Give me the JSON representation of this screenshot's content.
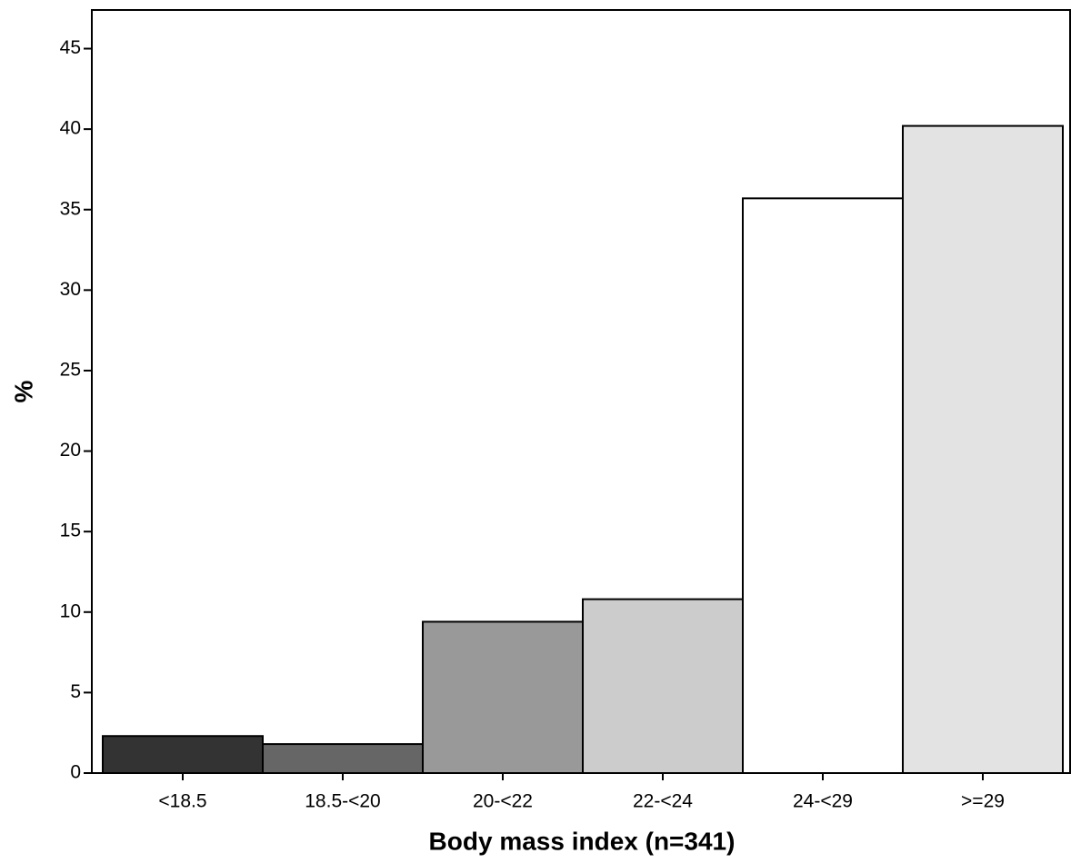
{
  "chart_data": {
    "type": "bar",
    "x_label": "Body mass index (n=341)",
    "y_label": "%",
    "categories": [
      "<18.5",
      "18.5-<20",
      "20-<22",
      "22-<24",
      "24-<29",
      ">=29"
    ],
    "values": [
      2.3,
      1.8,
      9.4,
      10.8,
      35.7,
      40.2
    ],
    "colors": [
      "#333333",
      "#666666",
      "#999999",
      "#cccccc",
      "#ffffff",
      "#e3e3e3"
    ],
    "ylim": [
      0,
      47.4
    ],
    "yticks": [
      0,
      5,
      10,
      15,
      20,
      25,
      30,
      35,
      40,
      45
    ],
    "grid": false
  }
}
